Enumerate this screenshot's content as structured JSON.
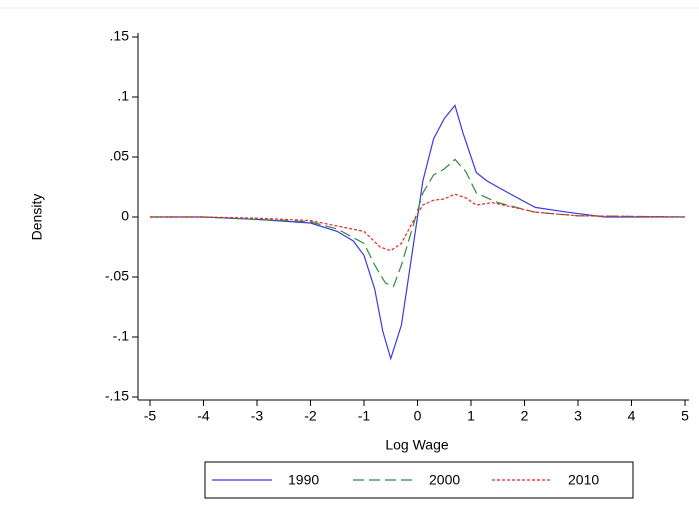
{
  "chart_data": {
    "type": "line",
    "xlabel": "Log Wage",
    "ylabel": "Density",
    "xlim": [
      -5,
      5
    ],
    "ylim": [
      -0.15,
      0.15
    ],
    "xticks": [
      -5,
      -4,
      -3,
      -2,
      -1,
      0,
      1,
      2,
      3,
      4,
      5
    ],
    "yticks": [
      {
        "value": -0.15,
        "label": "-.15"
      },
      {
        "value": -0.1,
        "label": "-.1"
      },
      {
        "value": -0.05,
        "label": "-.05"
      },
      0,
      {
        "value": 0.05,
        "label": ".05"
      },
      {
        "value": 0.1,
        "label": ".1"
      },
      {
        "value": 0.15,
        "label": ".15"
      }
    ],
    "legend": "bottom",
    "series": [
      {
        "name": "1990",
        "color": "#3a3ae0",
        "linestyle": "solid",
        "x": [
          -5,
          -4,
          -3,
          -2,
          -1.5,
          -1.2,
          -1,
          -0.8,
          -0.65,
          -0.5,
          -0.3,
          -0.1,
          0.1,
          0.3,
          0.5,
          0.7,
          0.85,
          1.1,
          1.3,
          1.7,
          2.2,
          2.8,
          3.5,
          5
        ],
        "values": [
          0,
          0,
          -0.002,
          -0.005,
          -0.012,
          -0.02,
          -0.032,
          -0.06,
          -0.095,
          -0.118,
          -0.09,
          -0.03,
          0.03,
          0.065,
          0.082,
          0.093,
          0.07,
          0.037,
          0.03,
          0.02,
          0.008,
          0.004,
          0,
          0
        ]
      },
      {
        "name": "2000",
        "color": "#2e8b3e",
        "linestyle": "dash",
        "x": [
          -5,
          -4,
          -3,
          -2,
          -1.5,
          -1,
          -0.8,
          -0.6,
          -0.45,
          -0.3,
          -0.1,
          0.1,
          0.3,
          0.5,
          0.7,
          0.9,
          1.1,
          1.5,
          2.2,
          3,
          5
        ],
        "values": [
          0,
          0,
          -0.002,
          -0.004,
          -0.01,
          -0.022,
          -0.04,
          -0.055,
          -0.058,
          -0.04,
          -0.01,
          0.02,
          0.035,
          0.04,
          0.048,
          0.038,
          0.02,
          0.012,
          0.004,
          0.001,
          0
        ]
      },
      {
        "name": "2010",
        "color": "#ee2222",
        "linestyle": "dot",
        "x": [
          -5,
          -4,
          -3,
          -2,
          -1,
          -0.7,
          -0.5,
          -0.3,
          -0.1,
          0.1,
          0.3,
          0.5,
          0.7,
          0.9,
          1.1,
          1.4,
          2.2,
          3,
          5
        ],
        "values": [
          0,
          0,
          -0.001,
          -0.003,
          -0.012,
          -0.025,
          -0.028,
          -0.022,
          -0.005,
          0.01,
          0.014,
          0.015,
          0.019,
          0.016,
          0.01,
          0.012,
          0.004,
          0.001,
          0
        ]
      }
    ]
  }
}
